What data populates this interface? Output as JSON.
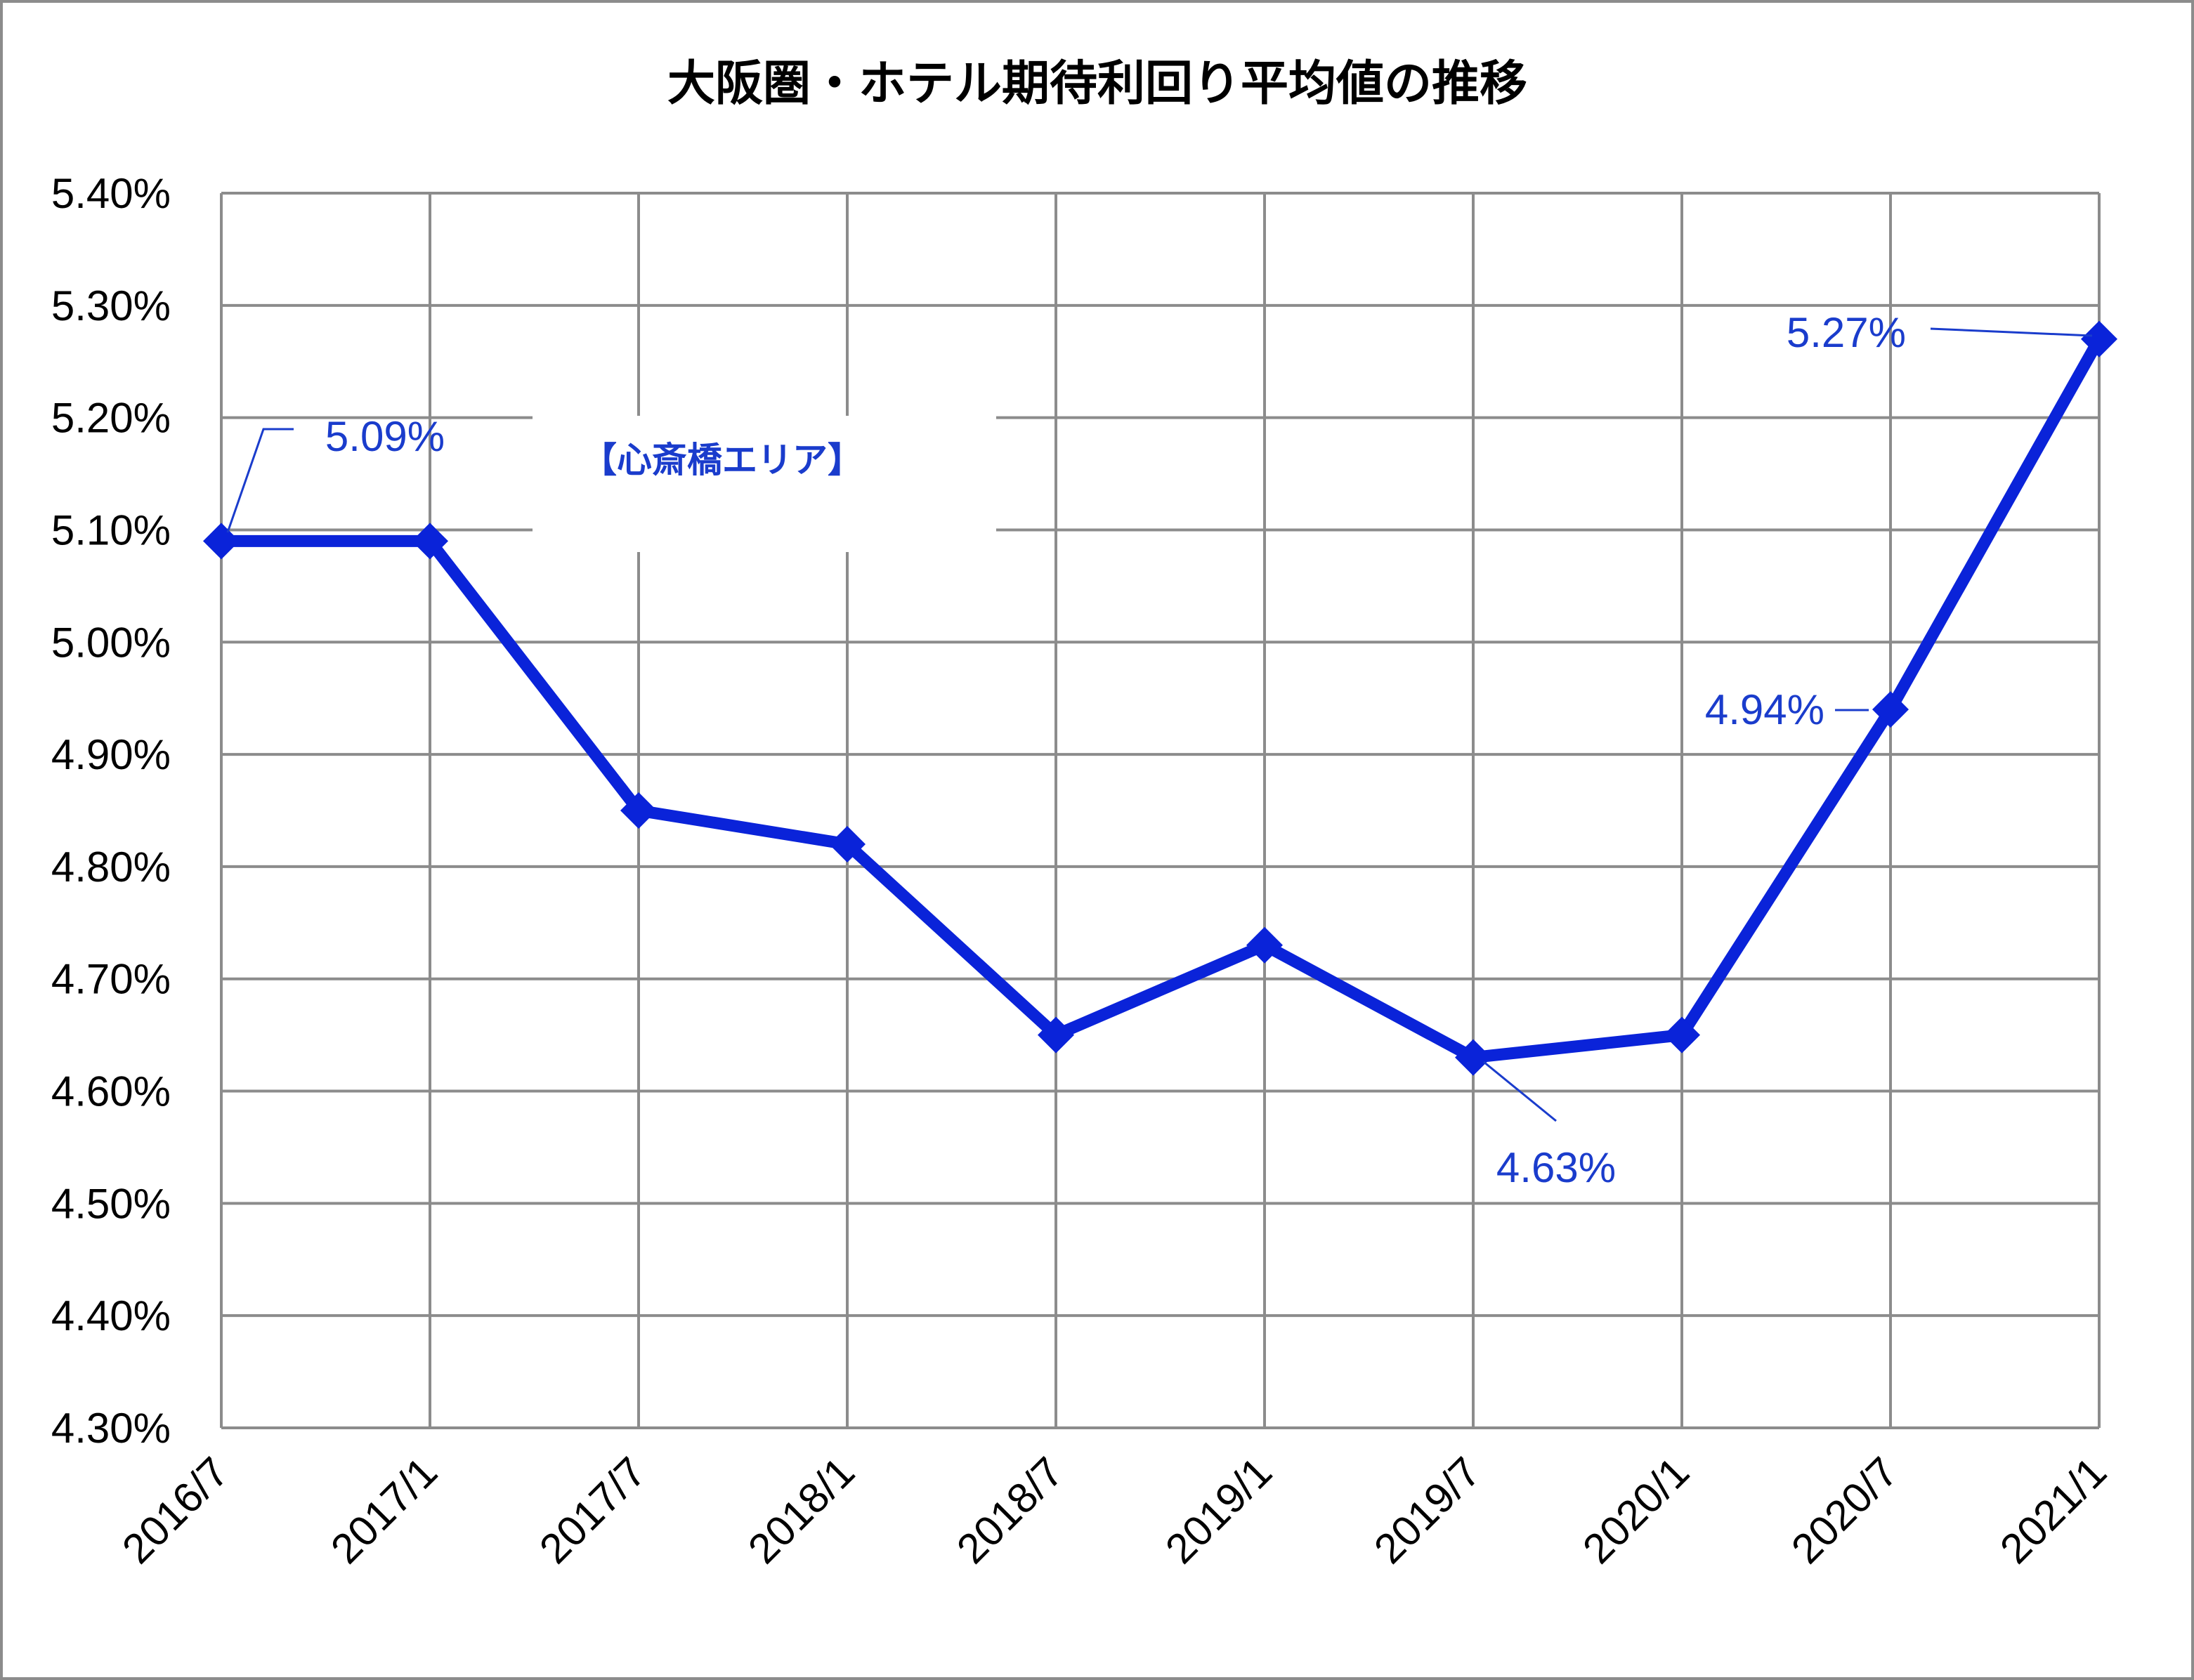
{
  "chart_data": {
    "type": "line",
    "title": "大阪圏・ホテル期待利回り平均値の推移",
    "annotation": "【心斎橋エリア】",
    "xlabel": "",
    "ylabel": "",
    "categories": [
      "2016/7",
      "2017/1",
      "2017/7",
      "2018/1",
      "2018/7",
      "2019/1",
      "2019/7",
      "2020/1",
      "2020/7",
      "2021/1"
    ],
    "series": [
      {
        "values": [
          5.09,
          5.09,
          4.85,
          4.82,
          4.65,
          4.73,
          4.63,
          4.65,
          4.94,
          5.27
        ],
        "color": "#0a23d9"
      }
    ],
    "data_labels": [
      {
        "index": 0,
        "text": "5.09%"
      },
      {
        "index": 6,
        "text": "4.63%"
      },
      {
        "index": 8,
        "text": "4.94%"
      },
      {
        "index": 9,
        "text": "5.27%"
      }
    ],
    "ylim": [
      4.3,
      5.4
    ],
    "ytick_step": 0.1,
    "yticks": [
      "4.30%",
      "4.40%",
      "4.50%",
      "4.60%",
      "4.70%",
      "4.80%",
      "4.90%",
      "5.00%",
      "5.10%",
      "5.20%",
      "5.30%",
      "5.40%"
    ],
    "grid": true,
    "legend": "none",
    "marker": "diamond",
    "label_color": "#1a3ccc",
    "grid_color": "#8c8c8c"
  }
}
